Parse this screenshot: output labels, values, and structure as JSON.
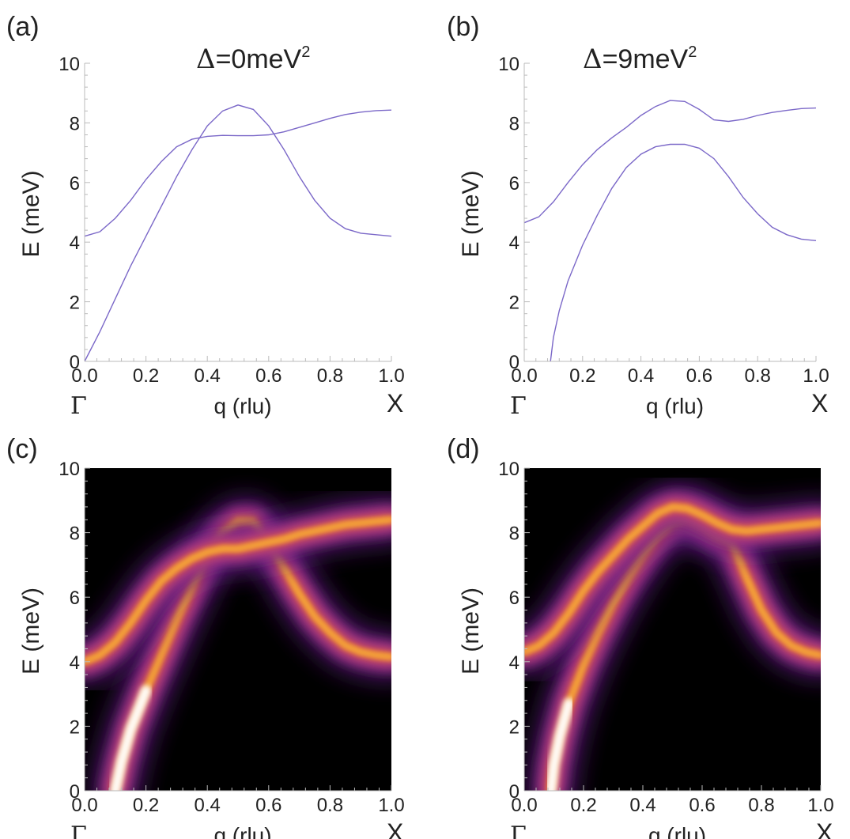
{
  "chart_data": [
    {
      "panel_label": "(a)",
      "type": "line",
      "title_symbol": "Δ",
      "title_value": "=0meV",
      "title_exponent": "2",
      "xlabel": "q (rlu)",
      "ylabel": "E (meV)",
      "xlim": [
        0,
        1
      ],
      "ylim": [
        0,
        10
      ],
      "x_ticks": [
        "0.0",
        "0.2",
        "0.4",
        "0.6",
        "0.8",
        "1.0"
      ],
      "y_ticks": [
        "0",
        "2",
        "4",
        "6",
        "8",
        "10"
      ],
      "x_point_labels": {
        "start": "Γ",
        "end": "X"
      },
      "grid": false,
      "line_color": "#7b68c8",
      "series": [
        {
          "x": [
            0,
            0.05,
            0.1,
            0.15,
            0.2,
            0.25,
            0.3,
            0.35,
            0.4,
            0.45,
            0.5,
            0.55,
            0.6,
            0.65,
            0.7,
            0.75,
            0.8,
            0.85,
            0.9,
            0.95,
            1.0
          ],
          "y": [
            0,
            1.0,
            2.1,
            3.2,
            4.2,
            5.2,
            6.2,
            7.1,
            7.9,
            8.4,
            8.6,
            8.45,
            7.9,
            7.1,
            6.2,
            5.4,
            4.8,
            4.45,
            4.3,
            4.25,
            4.2
          ]
        },
        {
          "x": [
            0,
            0.05,
            0.1,
            0.15,
            0.2,
            0.25,
            0.3,
            0.35,
            0.4,
            0.45,
            0.5,
            0.55,
            0.6,
            0.65,
            0.7,
            0.75,
            0.8,
            0.85,
            0.9,
            0.95,
            1.0
          ],
          "y": [
            4.2,
            4.35,
            4.8,
            5.4,
            6.1,
            6.7,
            7.2,
            7.45,
            7.55,
            7.58,
            7.57,
            7.57,
            7.6,
            7.7,
            7.85,
            8.0,
            8.15,
            8.28,
            8.36,
            8.41,
            8.43
          ]
        }
      ]
    },
    {
      "panel_label": "(b)",
      "type": "line",
      "title_symbol": "Δ",
      "title_value": "=9meV",
      "title_exponent": "2",
      "xlabel": "q (rlu)",
      "ylabel": "E (meV)",
      "xlim": [
        0,
        1
      ],
      "ylim": [
        0,
        10
      ],
      "x_ticks": [
        "0.0",
        "0.2",
        "0.4",
        "0.6",
        "0.8",
        "1.0"
      ],
      "y_ticks": [
        "0",
        "2",
        "4",
        "6",
        "8",
        "10"
      ],
      "x_point_labels": {
        "start": "Γ",
        "end": "X"
      },
      "grid": false,
      "line_color": "#7b68c8",
      "series": [
        {
          "x": [
            0.09,
            0.1,
            0.12,
            0.15,
            0.2,
            0.25,
            0.3,
            0.35,
            0.4,
            0.45,
            0.5,
            0.55,
            0.6,
            0.65,
            0.7,
            0.75,
            0.8,
            0.85,
            0.9,
            0.95,
            1.0
          ],
          "y": [
            0,
            0.8,
            1.7,
            2.7,
            3.9,
            4.9,
            5.8,
            6.5,
            6.95,
            7.2,
            7.28,
            7.28,
            7.15,
            6.8,
            6.2,
            5.5,
            4.95,
            4.5,
            4.25,
            4.1,
            4.05
          ]
        },
        {
          "x": [
            0,
            0.05,
            0.1,
            0.15,
            0.2,
            0.25,
            0.3,
            0.35,
            0.4,
            0.45,
            0.5,
            0.55,
            0.6,
            0.65,
            0.7,
            0.75,
            0.8,
            0.85,
            0.9,
            0.95,
            1.0
          ],
          "y": [
            4.65,
            4.85,
            5.35,
            6.0,
            6.6,
            7.1,
            7.5,
            7.85,
            8.25,
            8.55,
            8.75,
            8.72,
            8.45,
            8.1,
            8.05,
            8.12,
            8.25,
            8.35,
            8.42,
            8.48,
            8.5
          ]
        }
      ]
    },
    {
      "panel_label": "(c)",
      "type": "heatmap",
      "xlabel": "q (rlu)",
      "ylabel": "E (meV)",
      "xlim": [
        0,
        1
      ],
      "ylim": [
        0,
        10
      ],
      "x_ticks": [
        "0.0",
        "0.2",
        "0.4",
        "0.6",
        "0.8",
        "1.0"
      ],
      "y_ticks": [
        "0",
        "2",
        "4",
        "6",
        "8",
        "10"
      ],
      "x_point_labels": {
        "start": "Γ",
        "end": "X"
      },
      "colormap": [
        "#000000",
        "#2a0a3a",
        "#5b1f7a",
        "#9a3393",
        "#d1495b",
        "#f08a2c",
        "#fbc14a",
        "#ffffff"
      ],
      "bands": [
        {
          "x": [
            0.1,
            0.12,
            0.15,
            0.2,
            0.25,
            0.3,
            0.35,
            0.4,
            0.45,
            0.5,
            0.55,
            0.6,
            0.65,
            0.7,
            0.75,
            0.8,
            0.85,
            0.9,
            0.95,
            1.0
          ],
          "y": [
            0,
            0.9,
            1.9,
            3.1,
            4.2,
            5.3,
            6.3,
            7.3,
            8.0,
            8.35,
            8.35,
            7.7,
            6.9,
            6.1,
            5.4,
            4.9,
            4.5,
            4.3,
            4.2,
            4.15
          ]
        },
        {
          "x": [
            0,
            0.05,
            0.1,
            0.15,
            0.2,
            0.25,
            0.3,
            0.35,
            0.4,
            0.45,
            0.5,
            0.55,
            0.6,
            0.65,
            0.7,
            0.75,
            0.8,
            0.85,
            0.9,
            0.95,
            1.0
          ],
          "y": [
            4.0,
            4.2,
            4.6,
            5.2,
            5.9,
            6.5,
            6.9,
            7.2,
            7.4,
            7.5,
            7.5,
            7.6,
            7.7,
            7.8,
            7.95,
            8.05,
            8.15,
            8.25,
            8.3,
            8.35,
            8.4
          ]
        }
      ]
    },
    {
      "panel_label": "(d)",
      "type": "heatmap",
      "xlabel": "q (rlu)",
      "ylabel": "E (meV)",
      "xlim": [
        0,
        1
      ],
      "ylim": [
        0,
        10
      ],
      "x_ticks": [
        "0.0",
        "0.2",
        "0.4",
        "0.6",
        "0.8",
        "1.0"
      ],
      "y_ticks": [
        "0",
        "2",
        "4",
        "6",
        "8",
        "10"
      ],
      "x_point_labels": {
        "start": "Γ",
        "end": "X"
      },
      "colormap": [
        "#000000",
        "#2a0a3a",
        "#5b1f7a",
        "#9a3393",
        "#d1495b",
        "#f08a2c",
        "#fbc14a",
        "#ffffff"
      ],
      "bands": [
        {
          "x": [
            0.09,
            0.1,
            0.12,
            0.15,
            0.2,
            0.25,
            0.3,
            0.35,
            0.4,
            0.45,
            0.5,
            0.55,
            0.6,
            0.65,
            0.7,
            0.75,
            0.8,
            0.85,
            0.9,
            0.95,
            1.0
          ],
          "y": [
            0,
            0.8,
            1.7,
            2.7,
            3.9,
            4.9,
            5.8,
            6.6,
            7.3,
            7.9,
            8.3,
            8.4,
            8.2,
            7.9,
            7.7,
            6.6,
            5.6,
            4.9,
            4.5,
            4.3,
            4.2
          ]
        },
        {
          "x": [
            0,
            0.05,
            0.1,
            0.15,
            0.2,
            0.25,
            0.3,
            0.35,
            0.4,
            0.45,
            0.5,
            0.55,
            0.6,
            0.65,
            0.7,
            0.75,
            0.8,
            0.85,
            0.9,
            0.95,
            1.0
          ],
          "y": [
            4.3,
            4.5,
            4.9,
            5.5,
            6.2,
            6.8,
            7.3,
            7.8,
            8.2,
            8.6,
            8.8,
            8.75,
            8.55,
            8.3,
            8.1,
            8.05,
            8.1,
            8.15,
            8.2,
            8.25,
            8.3
          ]
        }
      ]
    }
  ]
}
